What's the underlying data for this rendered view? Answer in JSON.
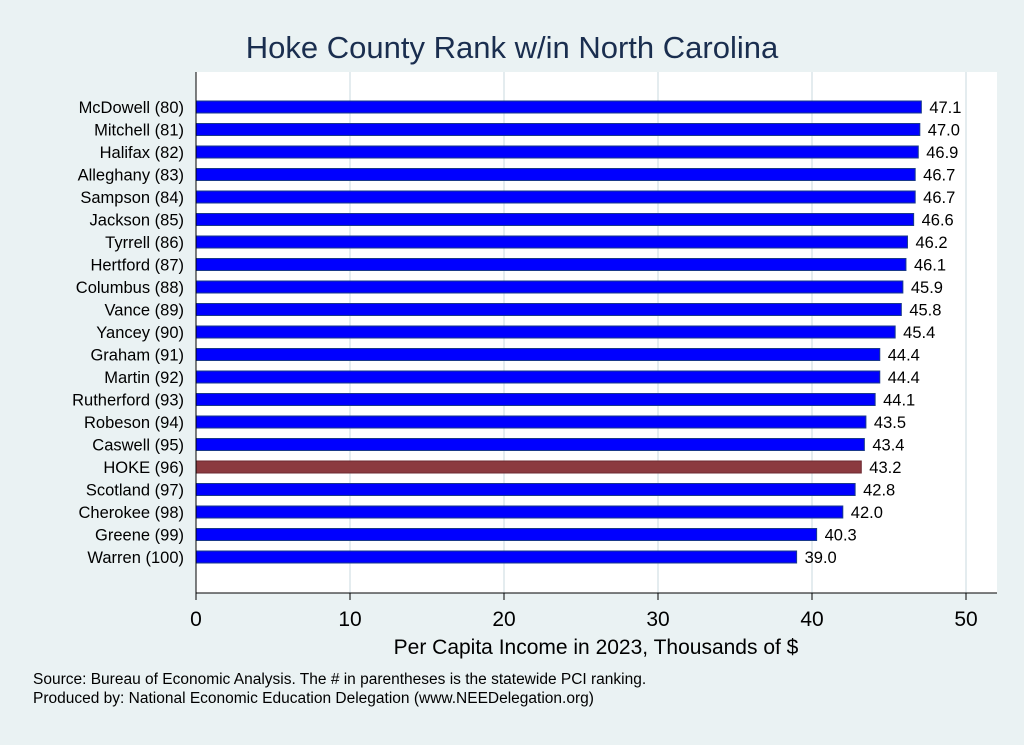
{
  "chart_data": {
    "type": "bar",
    "orientation": "horizontal",
    "title": "Hoke County Rank w/in North Carolina",
    "xlabel": "Per Capita Income in 2023, Thousands of $",
    "ylabel": "",
    "xlim": [
      0,
      51.5
    ],
    "xticks": [
      0,
      10,
      20,
      30,
      40,
      50
    ],
    "grid": true,
    "categories": [
      "McDowell (80)",
      "Mitchell (81)",
      "Halifax (82)",
      "Alleghany (83)",
      "Sampson (84)",
      "Jackson (85)",
      "Tyrrell (86)",
      "Hertford (87)",
      "Columbus (88)",
      "Vance (89)",
      "Yancey (90)",
      "Graham (91)",
      "Martin (92)",
      "Rutherford (93)",
      "Robeson (94)",
      "Caswell (95)",
      "HOKE (96)",
      "Scotland (97)",
      "Cherokee (98)",
      "Greene (99)",
      "Warren (100)"
    ],
    "values": [
      47.1,
      47.0,
      46.9,
      46.7,
      46.7,
      46.6,
      46.2,
      46.1,
      45.9,
      45.8,
      45.4,
      44.4,
      44.4,
      44.1,
      43.5,
      43.4,
      43.2,
      42.8,
      42.0,
      40.3,
      39.0
    ],
    "data_labels": [
      "47.1",
      "47.0",
      "46.9",
      "46.7",
      "46.7",
      "46.6",
      "46.2",
      "46.1",
      "45.9",
      "45.8",
      "45.4",
      "44.4",
      "44.4",
      "44.1",
      "43.5",
      "43.4",
      "43.2",
      "42.8",
      "42.0",
      "40.3",
      "39.0"
    ],
    "highlight_category": "HOKE (96)",
    "colors": {
      "bar": "#0000ff",
      "highlight": "#8b3a3f",
      "bar_edge": "#1a3a8a",
      "background": "#eaf2f3",
      "plot_background": "#ffffff",
      "title": "#1a2e4f"
    }
  },
  "notes": {
    "source": "Source: Bureau of Economic Analysis. The # in parentheses is the statewide PCI ranking.",
    "produced_by": "Produced by: National Economic Education Delegation (www.NEEDelegation.org)"
  }
}
